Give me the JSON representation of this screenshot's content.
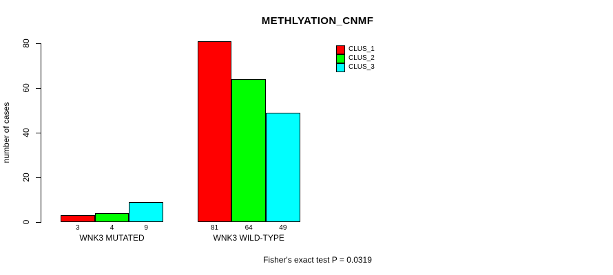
{
  "chart_data": {
    "type": "bar",
    "title": "METHLYATION_CNMF",
    "ylabel": "number of cases",
    "xlabel": "",
    "categories": [
      "WNK3 MUTATED",
      "WNK3 WILD-TYPE"
    ],
    "series": [
      {
        "name": "CLUS_1",
        "color": "#ff0000",
        "values": [
          3,
          81
        ]
      },
      {
        "name": "CLUS_2",
        "color": "#00ff00",
        "values": [
          4,
          64
        ]
      },
      {
        "name": "CLUS_3",
        "color": "#00ffff",
        "values": [
          9,
          49
        ]
      }
    ],
    "yticks": [
      0,
      20,
      40,
      60,
      80
    ],
    "ylim": [
      0,
      80
    ],
    "grid": false,
    "bar_value_labels_shown": true,
    "legend": {
      "position": "top-right-inside",
      "entries": [
        "CLUS_1",
        "CLUS_2",
        "CLUS_3"
      ]
    },
    "annotation": "Fisher's exact test P = 0.0319",
    "colors": {
      "background": "#ffffff",
      "axis": "#000000",
      "text": "#000000"
    }
  }
}
